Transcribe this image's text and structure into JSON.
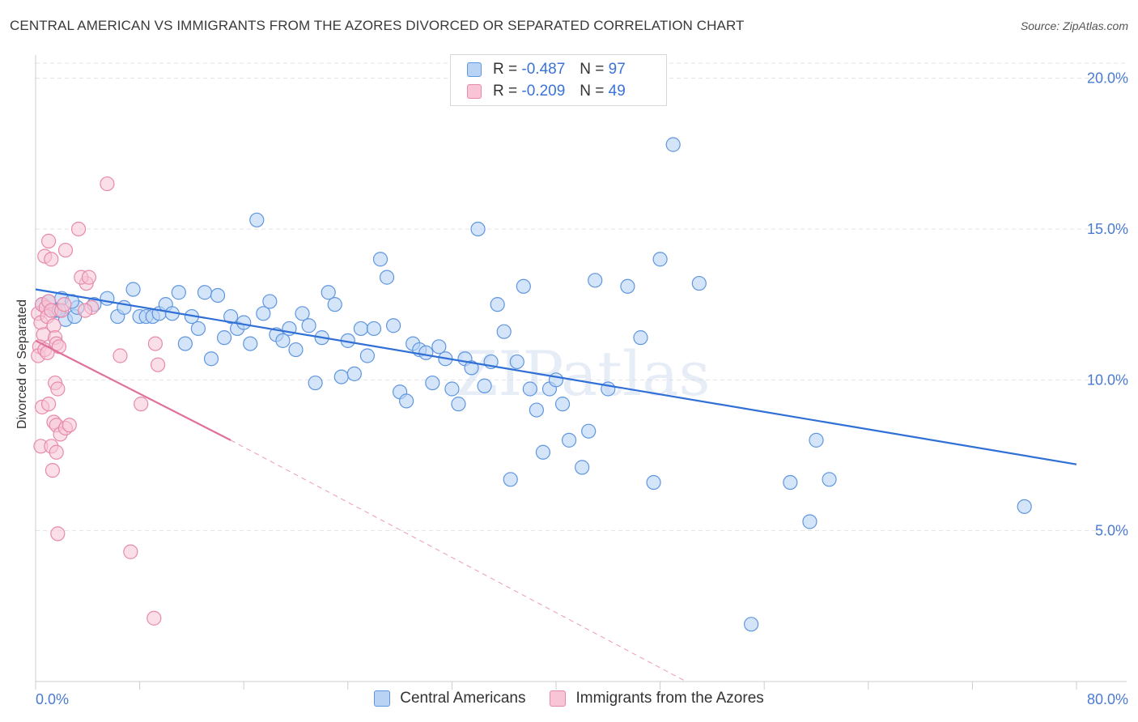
{
  "title": "CENTRAL AMERICAN VS IMMIGRANTS FROM THE AZORES DIVORCED OR SEPARATED CORRELATION CHART",
  "source": "Source: ZipAtlas.com",
  "watermark": "ZIPatlas",
  "legend": {
    "rows": [
      {
        "r_label": "R =",
        "r_value": "-0.487",
        "n_label": "N =",
        "n_value": "97"
      },
      {
        "r_label": "R =",
        "r_value": "-0.209",
        "n_label": "N =",
        "n_value": "49"
      }
    ]
  },
  "colors": {
    "blue_fill": "#b9d3f5",
    "blue_stroke": "#5f96df",
    "blue_line": "#2f6fd6",
    "pink_fill": "#f8c4d6",
    "pink_stroke": "#e78aa9",
    "pink_line": "#e0709a",
    "grid": "#e3e3e3",
    "tick_text": "#4a7bd0"
  },
  "chart_data": {
    "type": "scatter",
    "title": "CENTRAL AMERICAN VS IMMIGRANTS FROM THE AZORES DIVORCED OR SEPARATED CORRELATION CHART",
    "xlabel": "",
    "ylabel": "Divorced or Separated",
    "xlim": [
      0,
      80
    ],
    "ylim": [
      0,
      20.5
    ],
    "x_tick_labels": [
      "0.0%",
      "80.0%"
    ],
    "y_ticks": [
      5,
      10,
      15,
      20
    ],
    "y_tick_labels": [
      "5.0%",
      "10.0%",
      "15.0%",
      "20.0%"
    ],
    "grid": true,
    "legend_position": "top-center",
    "series": [
      {
        "name": "Central Americans",
        "trend": {
          "x": [
            0,
            80
          ],
          "y": [
            13.0,
            7.2
          ]
        },
        "points": [
          [
            0.5,
            12.5
          ],
          [
            1.0,
            12.6
          ],
          [
            1.5,
            12.3
          ],
          [
            2.0,
            12.7
          ],
          [
            2.3,
            12.0
          ],
          [
            3.0,
            12.1
          ],
          [
            4.5,
            12.5
          ],
          [
            5.5,
            12.7
          ],
          [
            6.3,
            12.1
          ],
          [
            6.8,
            12.4
          ],
          [
            7.5,
            13.0
          ],
          [
            8.0,
            12.1
          ],
          [
            8.5,
            12.1
          ],
          [
            9.0,
            12.1
          ],
          [
            9.5,
            12.2
          ],
          [
            10.0,
            12.5
          ],
          [
            10.5,
            12.2
          ],
          [
            11.0,
            12.9
          ],
          [
            11.5,
            11.2
          ],
          [
            12.0,
            12.1
          ],
          [
            12.5,
            11.7
          ],
          [
            13.0,
            12.9
          ],
          [
            13.5,
            10.7
          ],
          [
            14.0,
            12.8
          ],
          [
            14.5,
            11.4
          ],
          [
            15.0,
            12.1
          ],
          [
            15.5,
            11.7
          ],
          [
            16.0,
            11.9
          ],
          [
            16.5,
            11.2
          ],
          [
            17.0,
            15.3
          ],
          [
            17.5,
            12.2
          ],
          [
            18.0,
            12.6
          ],
          [
            18.5,
            11.5
          ],
          [
            19.0,
            11.3
          ],
          [
            19.5,
            11.7
          ],
          [
            20.0,
            11.0
          ],
          [
            20.5,
            12.2
          ],
          [
            21.0,
            11.8
          ],
          [
            21.5,
            9.9
          ],
          [
            22.0,
            11.4
          ],
          [
            22.5,
            12.9
          ],
          [
            23.0,
            12.5
          ],
          [
            23.5,
            10.1
          ],
          [
            24.0,
            11.3
          ],
          [
            24.5,
            10.2
          ],
          [
            25.0,
            11.7
          ],
          [
            25.5,
            10.8
          ],
          [
            26.0,
            11.7
          ],
          [
            26.5,
            14.0
          ],
          [
            27.0,
            13.4
          ],
          [
            27.5,
            11.8
          ],
          [
            28.0,
            9.6
          ],
          [
            28.5,
            9.3
          ],
          [
            29.0,
            11.2
          ],
          [
            29.5,
            11.0
          ],
          [
            30.0,
            10.9
          ],
          [
            30.5,
            9.9
          ],
          [
            31.0,
            11.1
          ],
          [
            31.5,
            10.7
          ],
          [
            32.0,
            9.7
          ],
          [
            32.5,
            9.2
          ],
          [
            33.0,
            10.7
          ],
          [
            33.5,
            10.4
          ],
          [
            34.0,
            15.0
          ],
          [
            34.5,
            9.8
          ],
          [
            35.0,
            10.6
          ],
          [
            35.5,
            12.5
          ],
          [
            36.0,
            11.6
          ],
          [
            36.5,
            6.7
          ],
          [
            37.0,
            10.6
          ],
          [
            37.5,
            13.1
          ],
          [
            38.0,
            9.7
          ],
          [
            38.5,
            9.0
          ],
          [
            39.0,
            7.6
          ],
          [
            39.5,
            9.7
          ],
          [
            40.0,
            10.0
          ],
          [
            40.5,
            9.2
          ],
          [
            41.0,
            8.0
          ],
          [
            42.0,
            7.1
          ],
          [
            42.5,
            8.3
          ],
          [
            43.0,
            13.3
          ],
          [
            44.0,
            9.7
          ],
          [
            45.5,
            13.1
          ],
          [
            46.5,
            11.4
          ],
          [
            47.5,
            6.6
          ],
          [
            48.0,
            14.0
          ],
          [
            49.0,
            17.8
          ],
          [
            51.0,
            13.2
          ],
          [
            55.0,
            1.9
          ],
          [
            58.0,
            6.6
          ],
          [
            59.5,
            5.3
          ],
          [
            60.0,
            8.0
          ],
          [
            61.0,
            6.7
          ],
          [
            76.0,
            5.8
          ],
          [
            3.2,
            12.4
          ],
          [
            2.8,
            12.6
          ],
          [
            1.8,
            12.3
          ]
        ]
      },
      {
        "name": "Immigrants from the Azores",
        "trend": {
          "x": [
            0,
            15
          ],
          "y": [
            11.3,
            8.0
          ]
        },
        "trend_extension": {
          "x": [
            15,
            50
          ],
          "y": [
            8.0,
            0
          ]
        },
        "points": [
          [
            0.2,
            12.2
          ],
          [
            0.4,
            11.9
          ],
          [
            0.5,
            12.5
          ],
          [
            0.6,
            11.5
          ],
          [
            0.3,
            11.1
          ],
          [
            0.2,
            10.8
          ],
          [
            0.8,
            12.4
          ],
          [
            0.9,
            12.1
          ],
          [
            1.0,
            12.6
          ],
          [
            1.2,
            12.3
          ],
          [
            1.4,
            11.8
          ],
          [
            1.5,
            11.4
          ],
          [
            1.6,
            11.2
          ],
          [
            0.7,
            11.0
          ],
          [
            0.9,
            10.9
          ],
          [
            1.8,
            11.1
          ],
          [
            2.0,
            12.3
          ],
          [
            2.2,
            12.5
          ],
          [
            0.5,
            9.1
          ],
          [
            1.0,
            9.2
          ],
          [
            1.5,
            9.9
          ],
          [
            1.7,
            9.7
          ],
          [
            1.4,
            8.6
          ],
          [
            1.6,
            8.5
          ],
          [
            1.9,
            8.2
          ],
          [
            2.3,
            8.4
          ],
          [
            2.6,
            8.5
          ],
          [
            0.4,
            7.8
          ],
          [
            1.2,
            7.8
          ],
          [
            1.6,
            7.6
          ],
          [
            1.3,
            7.0
          ],
          [
            1.7,
            4.9
          ],
          [
            0.7,
            14.1
          ],
          [
            1.0,
            14.6
          ],
          [
            1.2,
            14.0
          ],
          [
            2.3,
            14.3
          ],
          [
            3.3,
            15.0
          ],
          [
            3.9,
            13.2
          ],
          [
            4.3,
            12.4
          ],
          [
            5.5,
            16.5
          ],
          [
            3.5,
            13.4
          ],
          [
            3.8,
            12.3
          ],
          [
            4.1,
            13.4
          ],
          [
            6.5,
            10.8
          ],
          [
            8.1,
            9.2
          ],
          [
            9.2,
            11.2
          ],
          [
            9.4,
            10.5
          ],
          [
            7.3,
            4.3
          ],
          [
            9.1,
            2.1
          ]
        ]
      }
    ]
  }
}
